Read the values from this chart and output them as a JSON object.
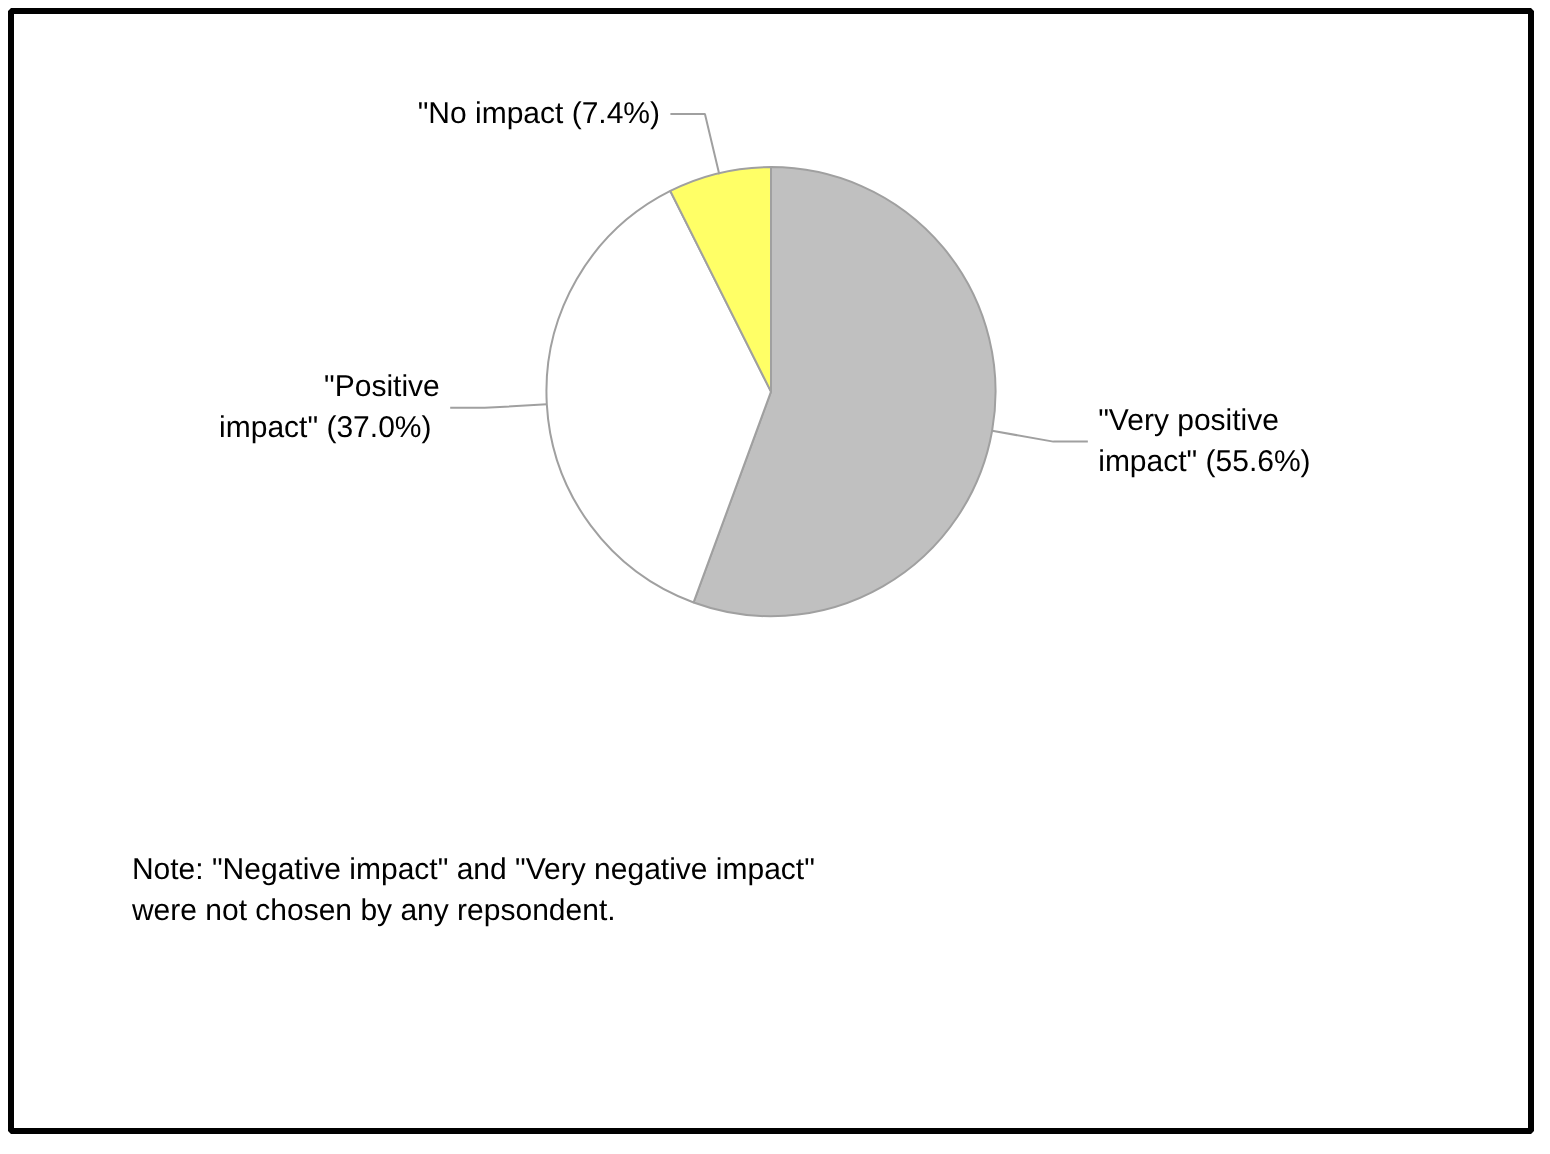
{
  "chart_data": {
    "type": "pie",
    "categories": [
      "\"Very positive impact\"",
      "\"Positive impact\"",
      "\"No impact"
    ],
    "values": [
      55.6,
      37.0,
      7.4
    ],
    "colors": [
      "#c0c0c0",
      "#ffffff",
      "#ffff66"
    ],
    "value_labels": [
      "(55.6%)",
      "(37.0%)",
      "(7.4%)"
    ],
    "annotations": [
      "Note:  \"Negative impact\" and \"Very negative impact\"\n           were not chosen by any repsondent."
    ]
  }
}
